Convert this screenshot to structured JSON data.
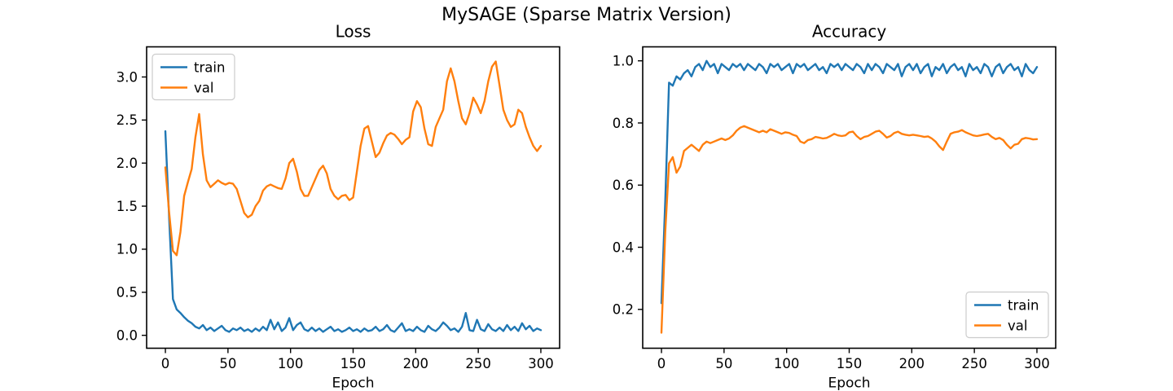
{
  "figure": {
    "title": "MySAGE (Sparse Matrix Version)",
    "background": "#ffffff"
  },
  "colors": {
    "train": "#1f77b4",
    "val": "#ff7f0e",
    "text": "#000000",
    "spine": "#000000",
    "legend_border": "#cccccc",
    "legend_fill": "rgba(255,255,255,0.85)"
  },
  "chart_data": [
    {
      "id": "loss",
      "type": "line",
      "title": "Loss",
      "xlabel": "Epoch",
      "ylabel": "",
      "grid": false,
      "xlim": [
        -15,
        315
      ],
      "ylim": [
        -0.15,
        3.35
      ],
      "xticks": [
        0,
        50,
        100,
        150,
        200,
        250,
        300
      ],
      "xtick_labels": [
        "0",
        "50",
        "100",
        "150",
        "200",
        "250",
        "300"
      ],
      "yticks": [
        0.0,
        0.5,
        1.0,
        1.5,
        2.0,
        2.5,
        3.0
      ],
      "ytick_labels": [
        "0.0",
        "0.5",
        "1.0",
        "1.5",
        "2.0",
        "2.5",
        "3.0"
      ],
      "legend": {
        "position": "upper left",
        "entries": [
          "train",
          "val"
        ]
      },
      "x": [
        0,
        3,
        6,
        9,
        12,
        15,
        18,
        21,
        24,
        27,
        30,
        33,
        36,
        39,
        42,
        45,
        48,
        51,
        54,
        57,
        60,
        63,
        66,
        69,
        72,
        75,
        78,
        81,
        84,
        87,
        90,
        93,
        96,
        99,
        102,
        105,
        108,
        111,
        114,
        117,
        120,
        123,
        126,
        129,
        132,
        135,
        138,
        141,
        144,
        147,
        150,
        153,
        156,
        159,
        162,
        165,
        168,
        171,
        174,
        177,
        180,
        183,
        186,
        189,
        192,
        195,
        198,
        201,
        204,
        207,
        210,
        213,
        216,
        219,
        222,
        225,
        228,
        231,
        234,
        237,
        240,
        243,
        246,
        249,
        252,
        255,
        258,
        261,
        264,
        267,
        270,
        273,
        276,
        279,
        282,
        285,
        288,
        291,
        294,
        297,
        300
      ],
      "series": [
        {
          "name": "train",
          "color": "#1f77b4",
          "values": [
            2.37,
            1.35,
            0.42,
            0.3,
            0.26,
            0.21,
            0.17,
            0.14,
            0.1,
            0.08,
            0.12,
            0.06,
            0.09,
            0.05,
            0.08,
            0.11,
            0.06,
            0.04,
            0.08,
            0.06,
            0.09,
            0.05,
            0.07,
            0.04,
            0.08,
            0.05,
            0.1,
            0.06,
            0.18,
            0.07,
            0.15,
            0.05,
            0.09,
            0.2,
            0.06,
            0.12,
            0.15,
            0.07,
            0.05,
            0.09,
            0.05,
            0.08,
            0.04,
            0.07,
            0.1,
            0.05,
            0.07,
            0.04,
            0.06,
            0.09,
            0.05,
            0.07,
            0.04,
            0.08,
            0.05,
            0.06,
            0.1,
            0.05,
            0.07,
            0.12,
            0.06,
            0.04,
            0.09,
            0.14,
            0.05,
            0.07,
            0.05,
            0.1,
            0.06,
            0.04,
            0.11,
            0.07,
            0.05,
            0.09,
            0.15,
            0.11,
            0.06,
            0.08,
            0.04,
            0.1,
            0.26,
            0.06,
            0.05,
            0.18,
            0.07,
            0.05,
            0.13,
            0.07,
            0.05,
            0.09,
            0.05,
            0.12,
            0.06,
            0.1,
            0.05,
            0.14,
            0.07,
            0.11,
            0.05,
            0.08,
            0.06
          ]
        },
        {
          "name": "val",
          "color": "#ff7f0e",
          "values": [
            1.95,
            1.42,
            0.98,
            0.93,
            1.2,
            1.62,
            1.78,
            1.93,
            2.3,
            2.57,
            2.1,
            1.8,
            1.72,
            1.76,
            1.8,
            1.77,
            1.75,
            1.77,
            1.76,
            1.7,
            1.56,
            1.42,
            1.37,
            1.4,
            1.5,
            1.56,
            1.68,
            1.73,
            1.75,
            1.73,
            1.71,
            1.7,
            1.82,
            2.0,
            2.05,
            1.9,
            1.7,
            1.62,
            1.62,
            1.72,
            1.82,
            1.92,
            1.97,
            1.88,
            1.7,
            1.62,
            1.58,
            1.62,
            1.63,
            1.57,
            1.6,
            1.9,
            2.2,
            2.4,
            2.43,
            2.25,
            2.07,
            2.12,
            2.23,
            2.32,
            2.35,
            2.33,
            2.28,
            2.22,
            2.27,
            2.3,
            2.6,
            2.72,
            2.65,
            2.4,
            2.22,
            2.2,
            2.42,
            2.52,
            2.62,
            2.95,
            3.1,
            2.95,
            2.72,
            2.52,
            2.45,
            2.58,
            2.76,
            2.68,
            2.58,
            2.72,
            2.95,
            3.12,
            3.18,
            2.9,
            2.62,
            2.5,
            2.42,
            2.45,
            2.62,
            2.58,
            2.42,
            2.3,
            2.2,
            2.14,
            2.2
          ]
        }
      ]
    },
    {
      "id": "accuracy",
      "type": "line",
      "title": "Accuracy",
      "xlabel": "Epoch",
      "ylabel": "",
      "grid": false,
      "xlim": [
        -15,
        315
      ],
      "ylim": [
        0.075,
        1.045
      ],
      "xticks": [
        0,
        50,
        100,
        150,
        200,
        250,
        300
      ],
      "xtick_labels": [
        "0",
        "50",
        "100",
        "150",
        "200",
        "250",
        "300"
      ],
      "yticks": [
        0.2,
        0.4,
        0.6,
        0.8,
        1.0
      ],
      "ytick_labels": [
        "0.2",
        "0.4",
        "0.6",
        "0.8",
        "1.0"
      ],
      "legend": {
        "position": "lower right",
        "entries": [
          "train",
          "val"
        ]
      },
      "x": [
        0,
        3,
        6,
        9,
        12,
        15,
        18,
        21,
        24,
        27,
        30,
        33,
        36,
        39,
        42,
        45,
        48,
        51,
        54,
        57,
        60,
        63,
        66,
        69,
        72,
        75,
        78,
        81,
        84,
        87,
        90,
        93,
        96,
        99,
        102,
        105,
        108,
        111,
        114,
        117,
        120,
        123,
        126,
        129,
        132,
        135,
        138,
        141,
        144,
        147,
        150,
        153,
        156,
        159,
        162,
        165,
        168,
        171,
        174,
        177,
        180,
        183,
        186,
        189,
        192,
        195,
        198,
        201,
        204,
        207,
        210,
        213,
        216,
        219,
        222,
        225,
        228,
        231,
        234,
        237,
        240,
        243,
        246,
        249,
        252,
        255,
        258,
        261,
        264,
        267,
        270,
        273,
        276,
        279,
        282,
        285,
        288,
        291,
        294,
        297,
        300
      ],
      "series": [
        {
          "name": "train",
          "color": "#1f77b4",
          "values": [
            0.22,
            0.55,
            0.93,
            0.92,
            0.95,
            0.94,
            0.96,
            0.97,
            0.95,
            0.98,
            0.99,
            0.97,
            1.0,
            0.98,
            0.99,
            0.96,
            0.99,
            0.98,
            0.97,
            0.99,
            0.98,
            0.99,
            0.97,
            0.99,
            0.98,
            0.97,
            0.99,
            0.98,
            0.96,
            0.99,
            0.98,
            0.99,
            0.97,
            0.98,
            0.99,
            0.96,
            0.99,
            0.98,
            0.99,
            0.97,
            0.98,
            0.99,
            0.97,
            0.98,
            0.96,
            0.99,
            0.98,
            0.99,
            0.97,
            0.99,
            0.98,
            0.97,
            0.99,
            0.98,
            0.96,
            0.99,
            0.97,
            0.99,
            0.98,
            0.96,
            0.99,
            0.98,
            0.97,
            0.99,
            0.95,
            0.98,
            0.99,
            0.97,
            0.99,
            0.96,
            0.98,
            0.99,
            0.95,
            0.98,
            0.97,
            0.99,
            0.96,
            0.98,
            0.99,
            0.97,
            0.98,
            0.95,
            0.99,
            0.97,
            0.98,
            0.96,
            0.99,
            0.98,
            0.95,
            0.98,
            0.99,
            0.96,
            0.98,
            0.99,
            0.97,
            0.98,
            0.95,
            0.99,
            0.97,
            0.96,
            0.98
          ]
        },
        {
          "name": "val",
          "color": "#ff7f0e",
          "values": [
            0.125,
            0.45,
            0.67,
            0.69,
            0.64,
            0.66,
            0.71,
            0.72,
            0.73,
            0.72,
            0.71,
            0.73,
            0.74,
            0.735,
            0.74,
            0.745,
            0.75,
            0.745,
            0.75,
            0.76,
            0.775,
            0.785,
            0.79,
            0.785,
            0.78,
            0.775,
            0.77,
            0.775,
            0.77,
            0.78,
            0.775,
            0.77,
            0.765,
            0.77,
            0.768,
            0.762,
            0.758,
            0.74,
            0.735,
            0.745,
            0.748,
            0.755,
            0.753,
            0.75,
            0.752,
            0.758,
            0.765,
            0.76,
            0.758,
            0.76,
            0.77,
            0.772,
            0.758,
            0.748,
            0.755,
            0.758,
            0.765,
            0.772,
            0.775,
            0.765,
            0.753,
            0.758,
            0.768,
            0.772,
            0.765,
            0.762,
            0.76,
            0.762,
            0.76,
            0.758,
            0.755,
            0.757,
            0.75,
            0.74,
            0.725,
            0.713,
            0.74,
            0.765,
            0.77,
            0.772,
            0.777,
            0.77,
            0.765,
            0.76,
            0.758,
            0.76,
            0.763,
            0.765,
            0.755,
            0.748,
            0.752,
            0.745,
            0.73,
            0.718,
            0.73,
            0.733,
            0.748,
            0.752,
            0.75,
            0.747,
            0.748
          ]
        }
      ]
    }
  ]
}
